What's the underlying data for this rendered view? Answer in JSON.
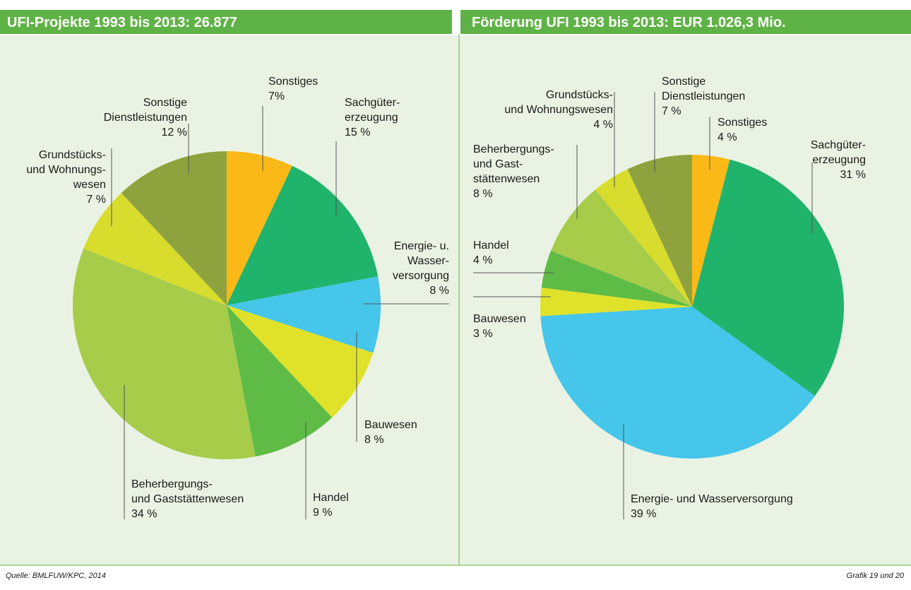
{
  "chart_data": [
    {
      "type": "pie",
      "title": "UFI-Projekte 1993 bis 2013: 26.877",
      "categories": [
        "Sonstiges",
        "Sachgüter-\nerzeugung",
        "Energie- u.\nWasser-\nversorgung",
        "Bauwesen",
        "Handel",
        "Beherbergungs-\nund Gaststättenwesen",
        "Grundstücks-\nund Wohnungs-\nwesen",
        "Sonstige\nDienstleistungen"
      ],
      "values": [
        7,
        15,
        8,
        8,
        9,
        34,
        7,
        12
      ],
      "value_labels": [
        "7%",
        "15 %",
        "8 %",
        "8 %",
        "9 %",
        "34 %",
        "7 %",
        "12 %"
      ],
      "colors": [
        "#fbb917",
        "#1fb36b",
        "#45c6ea",
        "#e0e22a",
        "#5dbb46",
        "#a6cc4a",
        "#d8dc2c",
        "#8ea33d"
      ]
    },
    {
      "type": "pie",
      "title": "Förderung UFI 1993 bis 2013: EUR 1.026,3 Mio.",
      "categories": [
        "Sonstiges",
        "Sachgüter-\nerzeugung",
        "Energie- und Wasserversorgung",
        "Bauwesen",
        "Handel",
        "Beherbergungs-\nund Gast-\nstättenwesen",
        "Grundstücks-\nund Wohnungswesen",
        "Sonstige\nDienstleistungen"
      ],
      "values": [
        4,
        31,
        39,
        3,
        4,
        8,
        4,
        7
      ],
      "value_labels": [
        "4 %",
        "31 %",
        "39 %",
        "3 %",
        "4 %",
        "8 %",
        "4 %",
        "7 %"
      ],
      "colors": [
        "#fbb917",
        "#1fb36b",
        "#45c6ea",
        "#e0e22a",
        "#5dbb46",
        "#a6cc4a",
        "#d8dc2c",
        "#8ea33d"
      ]
    }
  ],
  "footer": {
    "source": "Quelle: BMLFUW/KPC, 2014",
    "note": "Grafik 19 und 20"
  }
}
